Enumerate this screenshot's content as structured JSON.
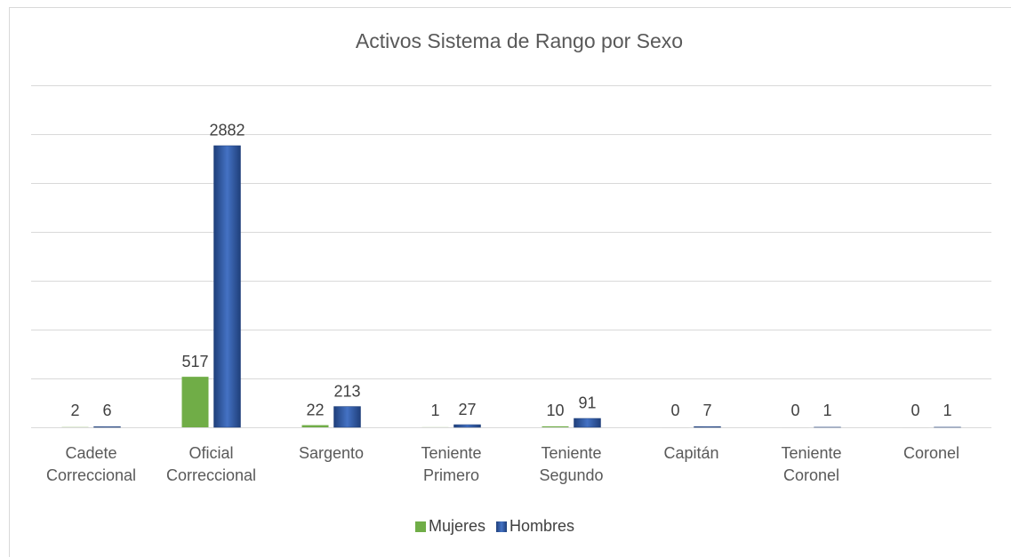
{
  "chart_data": {
    "type": "bar",
    "title": "Activos Sistema de Rango por Sexo",
    "categories": [
      "Cadete Correccional",
      "Oficial Correccional",
      "Sargento",
      "Teniente Primero",
      "Teniente Segundo",
      "Capitán",
      "Teniente Coronel",
      "Coronel"
    ],
    "series": [
      {
        "name": "Mujeres",
        "color": "#70ad47",
        "values": [
          2,
          517,
          22,
          1,
          10,
          0,
          0,
          0
        ]
      },
      {
        "name": "Hombres",
        "color": "#2f5597",
        "values": [
          6,
          2882,
          213,
          27,
          91,
          7,
          1,
          1
        ]
      }
    ],
    "ylim": [
      0,
      3500
    ],
    "yticks": [
      0,
      500,
      1000,
      1500,
      2000,
      2500,
      3000,
      3500
    ],
    "grid": true,
    "legend": "bottom"
  }
}
